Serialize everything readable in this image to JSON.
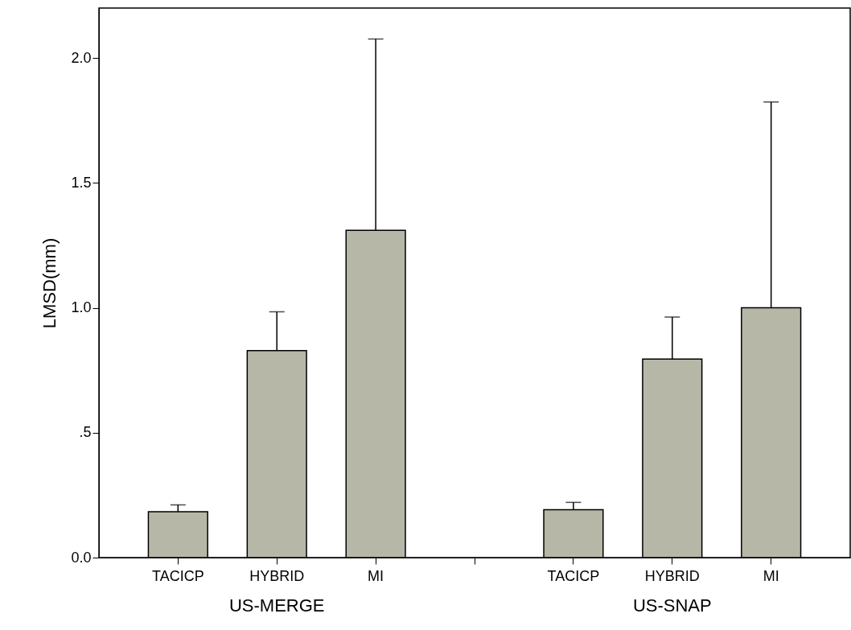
{
  "chart_data": {
    "type": "bar",
    "ylabel": "LMSD(mm)",
    "categories": [
      "TACICP",
      "HYBRID",
      "MI",
      null,
      "TACICP",
      "HYBRID",
      "MI"
    ],
    "values": [
      0.184,
      0.829,
      1.31,
      null,
      0.192,
      0.795,
      1.0
    ],
    "errors": [
      [
        0.184,
        0.211
      ],
      [
        0.829,
        0.984
      ],
      [
        1.31,
        2.076
      ],
      null,
      [
        0.192,
        0.221
      ],
      [
        0.795,
        0.963
      ],
      [
        1.0,
        1.824
      ]
    ],
    "color": "#b7b7a8",
    "ylim": [
      0,
      2.2
    ],
    "yticks": [
      {
        "value": 0,
        "label": "0.0"
      },
      {
        "value": 0.5,
        "label": ".5"
      },
      {
        "value": 1.0,
        "label": "1.0"
      },
      {
        "value": 1.5,
        "label": "1.5"
      },
      {
        "value": 2.0,
        "label": "2.0"
      }
    ],
    "annotations": [
      "US-MERGE",
      "US-SNAP"
    ],
    "grid": false
  }
}
